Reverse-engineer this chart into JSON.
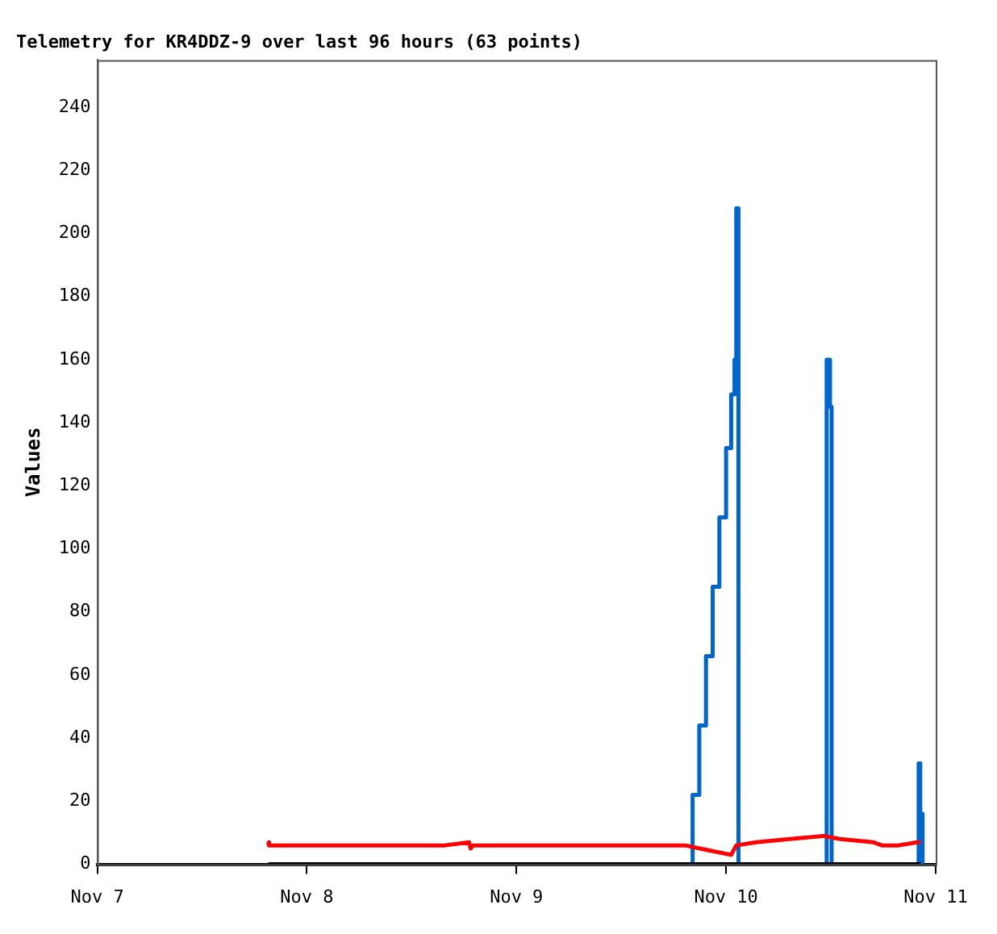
{
  "chart_data": {
    "type": "line",
    "title": "Telemetry for KR4DDZ-9 over last 96 hours (63 points)",
    "ylabel": "Values",
    "xlim": [
      "--11-07",
      "--11-11"
    ],
    "xticks": [
      {
        "value": "--11-07",
        "label": "Nov 7"
      },
      {
        "value": "--11-08",
        "label": "Nov 8"
      },
      {
        "value": "--11-09",
        "label": "Nov 9"
      },
      {
        "value": "--11-10",
        "label": "Nov 10"
      },
      {
        "value": "--11-11",
        "label": "Nov 11"
      }
    ],
    "ylim": [
      0,
      255
    ],
    "yticks": [
      0,
      20,
      40,
      60,
      80,
      100,
      120,
      140,
      160,
      180,
      200,
      220,
      240
    ],
    "grid": false,
    "legend": false,
    "marker": "none",
    "series": [
      {
        "color": "#000000",
        "x": [
          "--11-07T19:35",
          "--11-10T22:16"
        ],
        "values": [
          0,
          0
        ]
      },
      {
        "color": "#ff0000",
        "x": [
          "--11-07T19:35",
          "--11-07T19:40",
          "--11-08T15:50",
          "--11-08T18:35",
          "--11-08T18:45",
          "--11-08T19:00",
          "--11-09T19:20",
          "--11-09T21:00",
          "--11-10T00:35",
          "--11-10T01:10",
          "--11-10T03:27",
          "--11-10T07:17",
          "--11-10T11:08",
          "--11-10T13:03",
          "--11-10T16:53",
          "--11-10T17:50",
          "--11-10T19:46",
          "--11-10T21:53",
          "--11-10T22:16"
        ],
        "values": [
          7,
          6,
          6,
          7,
          5,
          6,
          6,
          5,
          3,
          6,
          7,
          8,
          9,
          8,
          7,
          6,
          6,
          7,
          7
        ]
      },
      {
        "type": "step",
        "color": "#0066cc",
        "x": [
          "--11-09T19:23",
          "--11-09T20:10",
          "--11-09T20:56",
          "--11-09T21:42",
          "--11-09T22:28",
          "--11-09T23:14",
          "--11-10T00:00",
          "--11-10T00:35",
          "--11-10T00:58",
          "--11-10T01:10",
          "--11-10T01:25",
          "--11-10T11:20",
          "--11-10T11:31",
          "--11-10T11:54",
          "--11-10T12:05",
          "--11-10T21:55",
          "--11-10T22:03",
          "--11-10T22:14",
          "--11-10T22:30"
        ],
        "values": [
          0,
          22,
          44,
          66,
          88,
          110,
          132,
          149,
          160,
          208,
          0,
          0,
          160,
          145,
          0,
          0,
          32,
          16,
          0
        ]
      }
    ]
  }
}
